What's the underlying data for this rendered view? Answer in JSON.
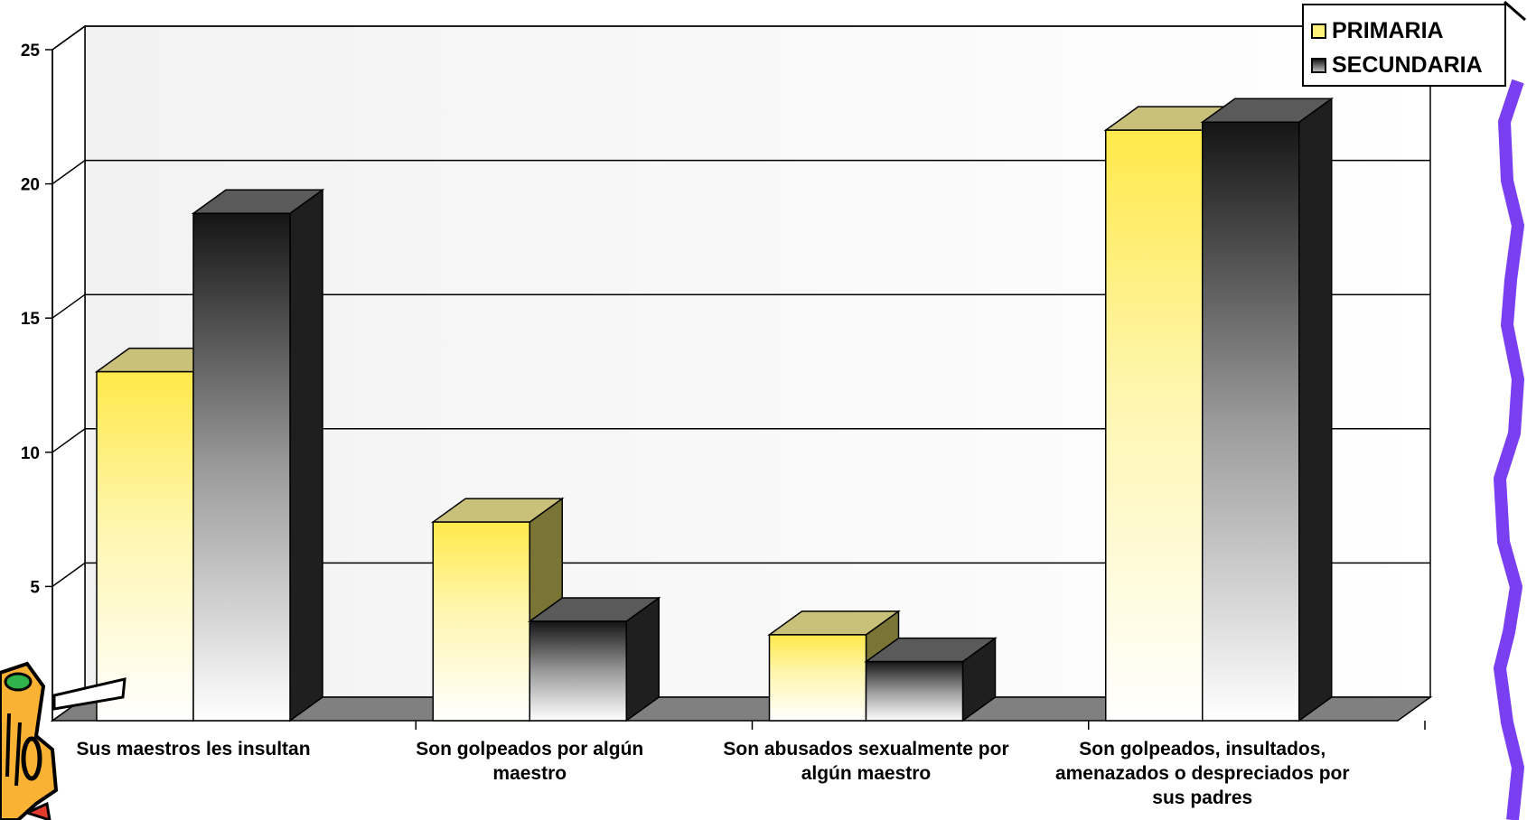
{
  "chart_data": {
    "type": "bar",
    "categories": [
      "Sus maestros les insultan",
      "Son golpeados por algún maestro",
      "Son abusados sexualmente por algún maestro",
      "Son golpeados, insultados, amenazados o despreciados por sus padres"
    ],
    "series": [
      {
        "name": "PRIMARIA",
        "values": [
          13.0,
          7.4,
          3.2,
          22.0
        ],
        "color": "#FFEE58"
      },
      {
        "name": "SECUNDARIA",
        "values": [
          18.9,
          3.7,
          2.2,
          22.3
        ],
        "color": "#1A1A1A"
      }
    ],
    "title": "",
    "xlabel": "",
    "ylabel": "",
    "yticks": [
      5,
      10,
      15,
      20,
      25
    ],
    "ylim": [
      0,
      25
    ],
    "grid": true,
    "legend": "top-right"
  }
}
